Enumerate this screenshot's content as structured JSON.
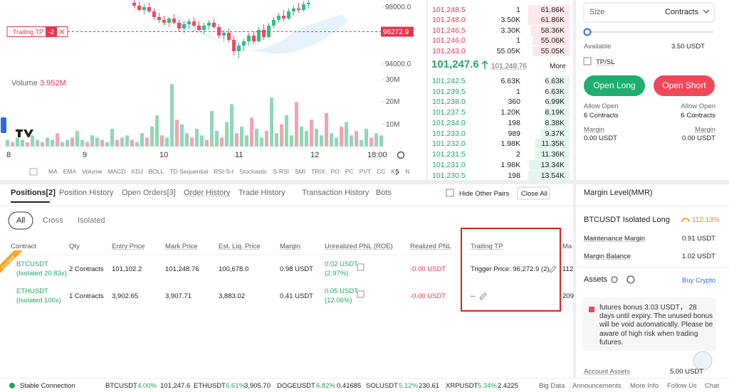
{
  "price_chart": {
    "ylim": [
      93500,
      98500
    ],
    "yticks": [
      {
        "value": 98000,
        "label": "98000.0"
      },
      {
        "value": 94000,
        "label": "94000.0"
      }
    ],
    "candles": [
      [
        98300,
        98500,
        97900,
        98100
      ],
      [
        98100,
        98400,
        97700,
        97800
      ],
      [
        97800,
        98200,
        97500,
        98000
      ],
      [
        98000,
        98300,
        97600,
        97700
      ],
      [
        97700,
        97900,
        97100,
        97300
      ],
      [
        97300,
        97600,
        96900,
        97100
      ],
      [
        97100,
        97400,
        96700,
        96900
      ],
      [
        96900,
        97300,
        96600,
        97200
      ],
      [
        97200,
        97500,
        96800,
        96900
      ],
      [
        96900,
        97100,
        96300,
        96500
      ],
      [
        96500,
        97000,
        96200,
        96800
      ],
      [
        96800,
        97200,
        96500,
        97000
      ],
      [
        97000,
        97300,
        96600,
        96700
      ],
      [
        96700,
        97000,
        96300,
        96400
      ],
      [
        96400,
        96900,
        96100,
        96700
      ],
      [
        96700,
        97100,
        96400,
        96900
      ],
      [
        96900,
        97200,
        96500,
        96600
      ],
      [
        96600,
        96800,
        95800,
        96000
      ],
      [
        96000,
        96400,
        95600,
        96200
      ],
      [
        96200,
        96500,
        95500,
        95700
      ],
      [
        95700,
        96000,
        94600,
        94900
      ],
      [
        94900,
        95500,
        94400,
        95300
      ],
      [
        95300,
        95800,
        94900,
        95600
      ],
      [
        95600,
        96200,
        95300,
        96000
      ],
      [
        96000,
        96300,
        95400,
        95600
      ],
      [
        95600,
        96600,
        95500,
        96400
      ],
      [
        96400,
        96800,
        95700,
        95900
      ],
      [
        95900,
        96900,
        95800,
        96700
      ],
      [
        96700,
        97300,
        96500,
        97100
      ],
      [
        97100,
        97600,
        96900,
        97400
      ],
      [
        97400,
        97800,
        97000,
        97200
      ],
      [
        97200,
        97900,
        97100,
        97700
      ],
      [
        97700,
        98100,
        97400,
        97900
      ],
      [
        97900,
        98300,
        97600,
        97800
      ],
      [
        97800,
        98400,
        97700,
        98200
      ],
      [
        98200,
        98500,
        97900,
        98300
      ]
    ],
    "trailing_tp": {
      "label": "Trailing TP",
      "tag": "-2",
      "price": 96272.9
    },
    "volume": {
      "label": "Volume",
      "current": "3.952M",
      "ylim": [
        0,
        30
      ],
      "yticks": [
        {
          "value": 30,
          "label": "30M"
        },
        {
          "value": 20,
          "label": "20M"
        },
        {
          "value": 10,
          "label": "10M"
        }
      ],
      "values": [
        3,
        2,
        4,
        3,
        2,
        5,
        3,
        2,
        4,
        3,
        6,
        2,
        3,
        4,
        7,
        3,
        2,
        5,
        4,
        3,
        2,
        8,
        3,
        4,
        5,
        3,
        2,
        6,
        4,
        9,
        14,
        5,
        4,
        28,
        12,
        10,
        6,
        4,
        8,
        5,
        3,
        16,
        7,
        4,
        11,
        19,
        6,
        9,
        5,
        13,
        8,
        4,
        7,
        22,
        6,
        10,
        14,
        5,
        20,
        9,
        7,
        12,
        8,
        5,
        15,
        6,
        4,
        9,
        11,
        5,
        7,
        3,
        8,
        4,
        6,
        5
      ]
    },
    "x_labels": [
      "8",
      "9",
      "10",
      "11",
      "12",
      "18:00"
    ],
    "indicators": [
      "MA",
      "EMA",
      "Volume",
      "MACD",
      "KDJ",
      "BOLL",
      "TD Sequential",
      "RSI-S-I",
      "Stochastic",
      "S-RSI",
      "SMI",
      "TRIX",
      "PO",
      "PC",
      "PVT",
      "CC",
      "KC",
      "N"
    ]
  },
  "order_book": {
    "asks": [
      [
        "101,248.5",
        "1",
        "61.86K"
      ],
      [
        "101,248.0",
        "3.50K",
        "61.86K"
      ],
      [
        "101,246.5",
        "3.30K",
        "58.36K"
      ],
      [
        "101,246.0",
        "1",
        "55.06K"
      ],
      [
        "101,243.0",
        "55.05K",
        "55.05K"
      ]
    ],
    "last_price": "101,247.6",
    "mark_price": "101,248.76",
    "more": "More",
    "bids": [
      [
        "101,242.5",
        "6.63K",
        "6.63K"
      ],
      [
        "101,239.5",
        "1",
        "6.63K"
      ],
      [
        "101,238.0",
        "360",
        "6.99K"
      ],
      [
        "101,237.5",
        "1.20K",
        "8.19K"
      ],
      [
        "101,234.0",
        "198",
        "8.38K"
      ],
      [
        "101,233.0",
        "989",
        "9.37K"
      ],
      [
        "101,232.0",
        "1.98K",
        "11.35K"
      ],
      [
        "101,231.5",
        "2",
        "11.36K"
      ],
      [
        "101,231.0",
        "1.98K",
        "13.34K"
      ],
      [
        "101,230.5",
        "198",
        "13.54K"
      ]
    ]
  },
  "order_form": {
    "size": "Size",
    "unit": "Contracts",
    "available_label": "Available",
    "available": "3.50 USDT",
    "tpsl": "TP/SL",
    "open_long": "Open Long",
    "open_short": "Open Short",
    "long_info": {
      "allow_label": "Allow Open",
      "allow": "6 Contracts",
      "margin_label": "Margin",
      "margin": "0.00 USDT"
    },
    "short_info": {
      "allow_label": "Allow Open",
      "allow": "6 Contracts",
      "margin_label": "Margin",
      "margin": "0.00 USDT"
    }
  },
  "tabs": [
    "Positions[2]",
    "Position History",
    "Open Orders[3]",
    "Order History",
    "Trade History",
    "Transaction History",
    "Bots"
  ],
  "hide_other_pairs": "Hide Other Pairs",
  "close_all": "Close All",
  "filters": [
    "All",
    "Cross",
    "Isolated"
  ],
  "positions": {
    "columns": [
      "Contract",
      "Qty",
      "Entry Price",
      "Mark Price",
      "Est. Liq. Price",
      "Margin",
      "Unrealized PNL (ROE)",
      "Realized PNL",
      "Trailing TP",
      "Ma"
    ],
    "current_badge": "Current",
    "rows": [
      {
        "contract": "BTCUSDT",
        "mode": "(Isolated 20.83x)",
        "qty": "2 Contracts",
        "entry": "101,102.2",
        "mark": "101,248.76",
        "liq": "100,678.0",
        "margin": "0.98 USDT",
        "pnl": "0.02 USDT",
        "roe": "(2.97%)",
        "realized": "-0.00 USDT",
        "trailing": "Trigger Price: 96,272.9 (2)",
        "next": "112"
      },
      {
        "contract": "ETHUSDT",
        "mode": "(Isolated 100x)",
        "qty": "1 Contracts",
        "entry": "3,902.65",
        "mark": "3,907.71",
        "liq": "3,883.02",
        "margin": "0.41 USDT",
        "pnl": "0.05 USDT",
        "roe": "(12.06%)",
        "realized": "-0.00 USDT",
        "trailing": "--",
        "next": "209"
      }
    ]
  },
  "margin_panel": {
    "title": "Margin Level(MMR)",
    "pair": "BTCUSDT Isolated Long",
    "level": "112.13%",
    "maintenance_label": "Maintenance Margin",
    "maintenance": "0.91 USDT",
    "balance_label": "Margin Balance",
    "balance": "1.02 USDT",
    "assets": "Assets",
    "buy_crypto": "Buy Crypto",
    "bonus": "futures bonus 3.03 USDT， 28 days until expiry. The unused bonus will be void automatically. Please be aware of high risk when trading futures.",
    "account_assets_label": "Account Assets",
    "account_assets": "5.00 USDT"
  },
  "footer": {
    "status": "Stable Connection",
    "tickers": [
      [
        "BTCUSDT",
        "4.00%",
        "101,247.6"
      ],
      [
        "ETHUSDT",
        "6.61%",
        "3,905.70"
      ],
      [
        "DOGEUSDT",
        "6.82%",
        "0.41685"
      ],
      [
        "SOLUSDT",
        "5.12%",
        "230.61"
      ],
      [
        "XRPUSDT",
        "5.34%",
        "2.4225"
      ]
    ],
    "links": [
      "Big Data",
      "Announcements",
      "More Info",
      "Follow Us",
      "Chat"
    ]
  }
}
